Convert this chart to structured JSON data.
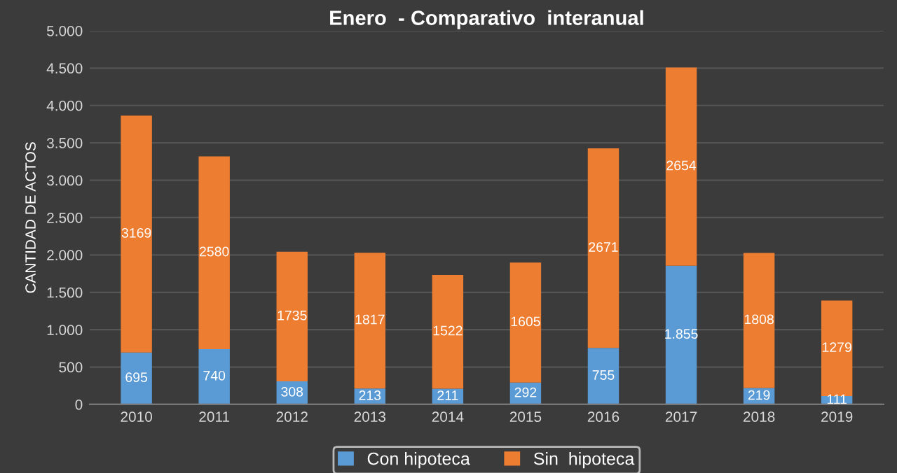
{
  "chart_data": {
    "type": "bar",
    "title": "Enero  - Comparativo  interanual",
    "ylabel": "CANTIDAD DE ACTOS",
    "categories": [
      "2010",
      "2011",
      "2012",
      "2013",
      "2014",
      "2015",
      "2016",
      "2017",
      "2018",
      "2019"
    ],
    "stacked": true,
    "series": [
      {
        "name": "Con hipoteca",
        "color": "#5b9bd5",
        "values": [
          695,
          740,
          308,
          213,
          211,
          292,
          755,
          1855,
          219,
          111
        ],
        "value_labels": [
          "695",
          "740",
          "308",
          "213",
          "211",
          "292",
          "755",
          "1.855",
          "219",
          "111"
        ]
      },
      {
        "name": "Sin  hipoteca",
        "color": "#ed7d31",
        "values": [
          3169,
          2580,
          1735,
          1817,
          1522,
          1605,
          2671,
          2654,
          1808,
          1279
        ],
        "value_labels": [
          "3169",
          "2580",
          "1735",
          "1817",
          "1522",
          "1605",
          "2671",
          "2654",
          "1808",
          "1279"
        ]
      }
    ],
    "ylim": [
      0,
      5000
    ],
    "yticks": [
      0,
      500,
      {
        "value": 1000,
        "label": "1.000"
      },
      {
        "value": 1500,
        "label": "1.500"
      },
      {
        "value": 2000,
        "label": "2.000"
      },
      {
        "value": 2500,
        "label": "2.500"
      },
      {
        "value": 3000,
        "label": "3.000"
      },
      {
        "value": 3500,
        "label": "3.500"
      },
      {
        "value": 4000,
        "label": "4.000"
      },
      {
        "value": 4500,
        "label": "4.500"
      },
      {
        "value": 5000,
        "label": "5.000"
      }
    ],
    "grid": "y",
    "legend": "bottom"
  }
}
